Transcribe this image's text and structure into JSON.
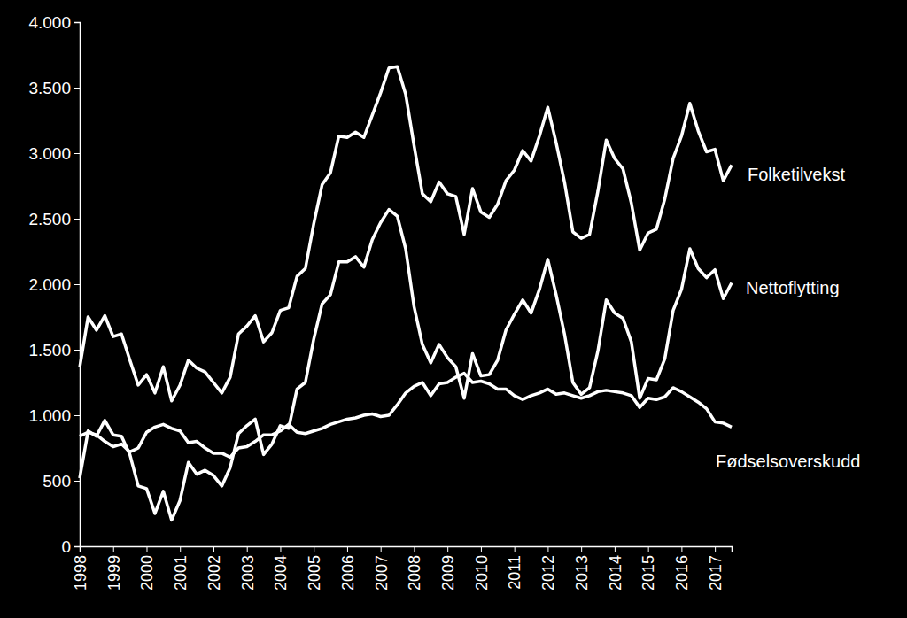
{
  "chart_data": {
    "type": "line",
    "categories": [
      "1998",
      null,
      null,
      null,
      "1999",
      null,
      null,
      null,
      "2000",
      null,
      null,
      null,
      "2001",
      null,
      null,
      null,
      "2002",
      null,
      null,
      null,
      "2003",
      null,
      null,
      null,
      "2004",
      null,
      null,
      null,
      "2005",
      null,
      null,
      null,
      "2006",
      null,
      null,
      null,
      "2007",
      null,
      null,
      null,
      "2008",
      null,
      null,
      null,
      "2009",
      null,
      null,
      null,
      "2010",
      null,
      null,
      null,
      "2011",
      null,
      null,
      null,
      "2012",
      null,
      null,
      null,
      "2013",
      null,
      null,
      null,
      "2014",
      null,
      null,
      null,
      "2015",
      null,
      null,
      null,
      "2016",
      null,
      null,
      null,
      "2017",
      null,
      null
    ],
    "series": [
      {
        "name": "Folketilvekst",
        "color": "#ffffff",
        "values": [
          1365,
          1750,
          1650,
          1760,
          1600,
          1620,
          1420,
          1230,
          1310,
          1170,
          1370,
          1110,
          1230,
          1420,
          1360,
          1330,
          1250,
          1170,
          1290,
          1620,
          1680,
          1760,
          1560,
          1630,
          1800,
          1820,
          2060,
          2120,
          2460,
          2760,
          2850,
          3130,
          3120,
          3160,
          3120,
          3290,
          3460,
          3650,
          3660,
          3450,
          3060,
          2690,
          2630,
          2780,
          2690,
          2670,
          2380,
          2730,
          2550,
          2510,
          2610,
          2790,
          2870,
          3020,
          2940,
          3130,
          3350,
          3080,
          2780,
          2400,
          2350,
          2380,
          2710,
          3100,
          2960,
          2880,
          2620,
          2260,
          2390,
          2420,
          2650,
          2960,
          3130,
          3380,
          3170,
          3010,
          3030,
          2790,
          2910
        ]
      },
      {
        "name": "Nettoflytting",
        "color": "#ffffff",
        "values": [
          520,
          880,
          840,
          960,
          850,
          840,
          700,
          460,
          440,
          250,
          420,
          200,
          350,
          640,
          550,
          580,
          540,
          460,
          600,
          860,
          920,
          970,
          700,
          780,
          920,
          900,
          1200,
          1250,
          1580,
          1850,
          1920,
          2170,
          2170,
          2210,
          2130,
          2340,
          2470,
          2570,
          2520,
          2270,
          1830,
          1540,
          1400,
          1540,
          1440,
          1370,
          1130,
          1470,
          1300,
          1310,
          1420,
          1650,
          1770,
          1880,
          1780,
          1960,
          2190,
          1920,
          1620,
          1250,
          1160,
          1210,
          1490,
          1880,
          1780,
          1740,
          1560,
          1130,
          1280,
          1270,
          1430,
          1800,
          1960,
          2270,
          2120,
          2050,
          2110,
          1890,
          2010
        ]
      },
      {
        "name": "Fødselsoverskudd",
        "color": "#ffffff",
        "values": [
          840,
          870,
          850,
          800,
          760,
          780,
          720,
          750,
          870,
          910,
          930,
          900,
          880,
          790,
          800,
          750,
          710,
          710,
          680,
          750,
          760,
          800,
          850,
          850,
          880,
          930,
          870,
          860,
          880,
          900,
          930,
          950,
          970,
          980,
          1000,
          1010,
          990,
          1000,
          1080,
          1170,
          1220,
          1250,
          1150,
          1240,
          1250,
          1290,
          1320,
          1250,
          1260,
          1240,
          1200,
          1200,
          1150,
          1120,
          1150,
          1170,
          1200,
          1160,
          1170,
          1150,
          1130,
          1150,
          1180,
          1190,
          1180,
          1170,
          1150,
          1060,
          1130,
          1120,
          1140,
          1210,
          1180,
          1140,
          1100,
          1050,
          950,
          940,
          910
        ]
      }
    ],
    "ylim": [
      0,
      4000
    ],
    "yticks": [
      0,
      500,
      {
        "value": 1000,
        "label": "1.000"
      },
      {
        "value": 1500,
        "label": "1.500"
      },
      {
        "value": 2000,
        "label": "2.000"
      },
      {
        "value": 2500,
        "label": "2.500"
      },
      {
        "value": 3000,
        "label": "3.000"
      },
      {
        "value": 3500,
        "label": "3.500"
      },
      {
        "value": 4000,
        "label": "4.000"
      }
    ],
    "grid": false
  }
}
